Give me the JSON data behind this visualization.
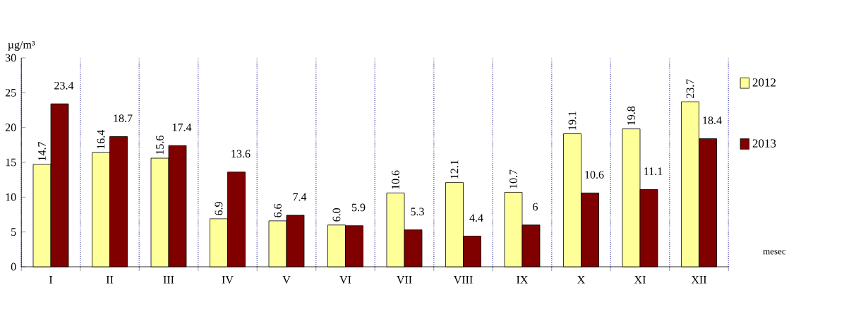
{
  "chart_data": {
    "type": "bar",
    "ylabel": "µg/m³",
    "xlabel": "mesec",
    "categories": [
      "I",
      "II",
      "III",
      "IV",
      "V",
      "VI",
      "VII",
      "VIII",
      "IX",
      "X",
      "XI",
      "XII"
    ],
    "series": [
      {
        "name": "2012",
        "color": "#ffff99",
        "values": [
          14.7,
          16.4,
          15.6,
          6.9,
          6.6,
          6.0,
          10.6,
          12.1,
          10.7,
          19.1,
          19.8,
          23.7
        ],
        "value_labels": [
          "14.7",
          "16.4",
          "15.6",
          "6.9",
          "6.6",
          "6.0",
          "10.6",
          "12.1",
          "10.7",
          "19.1",
          "19.8",
          "23.7"
        ]
      },
      {
        "name": "2013",
        "color": "#800000",
        "values": [
          23.4,
          18.7,
          17.4,
          13.6,
          7.4,
          5.9,
          5.3,
          4.4,
          6,
          10.6,
          11.1,
          18.4
        ],
        "value_labels": [
          "23.4",
          "18.7",
          "17.4",
          "13.6",
          "7.4",
          "5.9",
          "5.3",
          "4.4",
          "6",
          "10.6",
          "11.1",
          "18.4"
        ]
      }
    ],
    "ylim": [
      0,
      30
    ],
    "yticks": [
      0,
      5,
      10,
      15,
      20,
      25,
      30
    ],
    "grid": "x",
    "legend": "right"
  }
}
